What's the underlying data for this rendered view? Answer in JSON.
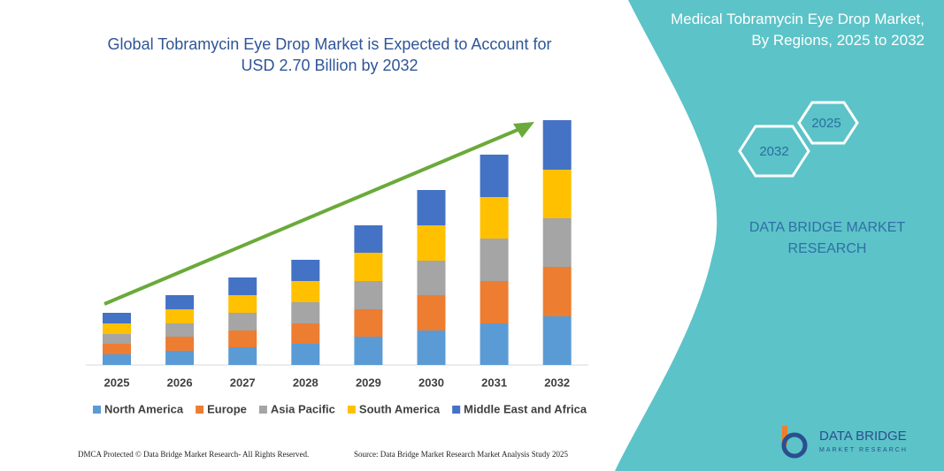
{
  "chart_data": {
    "type": "bar",
    "stacked": true,
    "title": "Global Tobramycin Eye Drop Market is Expected to Account for USD 2.70 Billion by 2032",
    "categories": [
      "2025",
      "2026",
      "2027",
      "2028",
      "2029",
      "2030",
      "2031",
      "2032"
    ],
    "series": [
      {
        "name": "North America",
        "color": "#5b9bd5",
        "values": [
          12,
          16,
          20,
          24,
          32,
          39,
          47,
          55
        ]
      },
      {
        "name": "Europe",
        "color": "#ed7d31",
        "values": [
          12,
          16,
          19,
          23,
          31,
          40,
          48,
          56
        ]
      },
      {
        "name": "Asia Pacific",
        "color": "#a5a5a5",
        "values": [
          11,
          15,
          20,
          24,
          32,
          39,
          48,
          55
        ]
      },
      {
        "name": "South America",
        "color": "#ffc000",
        "values": [
          12,
          16,
          20,
          24,
          32,
          40,
          47,
          55
        ]
      },
      {
        "name": "Middle East and Africa",
        "color": "#4472c4",
        "values": [
          12,
          16,
          20,
          24,
          31,
          40,
          48,
          56
        ]
      }
    ],
    "ylim": [
      0,
      290
    ]
  },
  "panel": {
    "title": "Medical Tobramycin Eye Drop Market, By Regions, 2025 to 2032",
    "hex_labels": [
      "2025",
      "2032"
    ],
    "brand": "DATA BRIDGE MARKET RESEARCH"
  },
  "logo": {
    "name": "DATA BRIDGE",
    "tagline": "MARKET RESEARCH"
  },
  "footer": {
    "left": "DMCA Protected © Data Bridge Market Research- All Rights Reserved.",
    "right": "Source: Data Bridge Market Research Market Analysis Study 2025"
  }
}
